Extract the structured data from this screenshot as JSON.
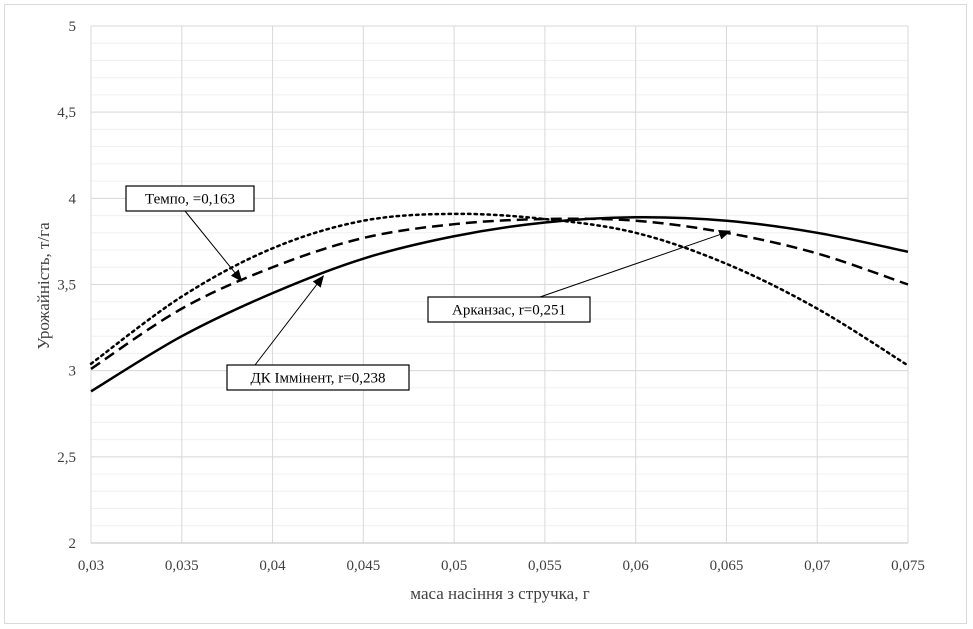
{
  "chart_data": {
    "type": "line",
    "xlabel": "маса насіння з стручка, г",
    "ylabel": "Урожайність, т/га",
    "xlim": [
      0.03,
      0.075
    ],
    "ylim": [
      2,
      5
    ],
    "x_ticks": [
      "0,03",
      "0,035",
      "0,04",
      "0,045",
      "0,05",
      "0,055",
      "0,06",
      "0,065",
      "0,07",
      "0,075"
    ],
    "y_ticks": [
      "2",
      "2,5",
      "3",
      "3,5",
      "4",
      "4,5",
      "5"
    ],
    "grid": true,
    "series": [
      {
        "name": "Темпо, =0,163",
        "style": "dotted",
        "x": [
          0.03,
          0.035,
          0.04,
          0.045,
          0.05,
          0.055,
          0.06,
          0.065,
          0.07,
          0.075
        ],
        "y": [
          3.04,
          3.43,
          3.71,
          3.87,
          3.91,
          3.88,
          3.8,
          3.62,
          3.36,
          3.03
        ]
      },
      {
        "name": "Арканзас, r=0,251",
        "style": "dashed",
        "x": [
          0.03,
          0.035,
          0.04,
          0.045,
          0.05,
          0.055,
          0.06,
          0.065,
          0.07,
          0.075
        ],
        "y": [
          3.01,
          3.36,
          3.6,
          3.77,
          3.85,
          3.88,
          3.87,
          3.8,
          3.68,
          3.5
        ]
      },
      {
        "name": "ДК Іммінент, r=0,238",
        "style": "solid",
        "x": [
          0.03,
          0.035,
          0.04,
          0.045,
          0.05,
          0.055,
          0.06,
          0.065,
          0.07,
          0.075
        ],
        "y": [
          2.88,
          3.2,
          3.45,
          3.65,
          3.78,
          3.86,
          3.89,
          3.87,
          3.8,
          3.69
        ]
      }
    ],
    "annotations": [
      {
        "text": "Темпо, =0,163",
        "target": [
          0.0383,
          3.52
        ]
      },
      {
        "text": "Арканзас, r=0,251",
        "target": [
          0.0652,
          3.81
        ]
      },
      {
        "text": "ДК Іммінент, r=0,238",
        "target": [
          0.0428,
          3.55
        ]
      }
    ],
    "colors": {
      "line": "#000000",
      "grid": "#d9d9d9",
      "text": "#404040"
    }
  }
}
